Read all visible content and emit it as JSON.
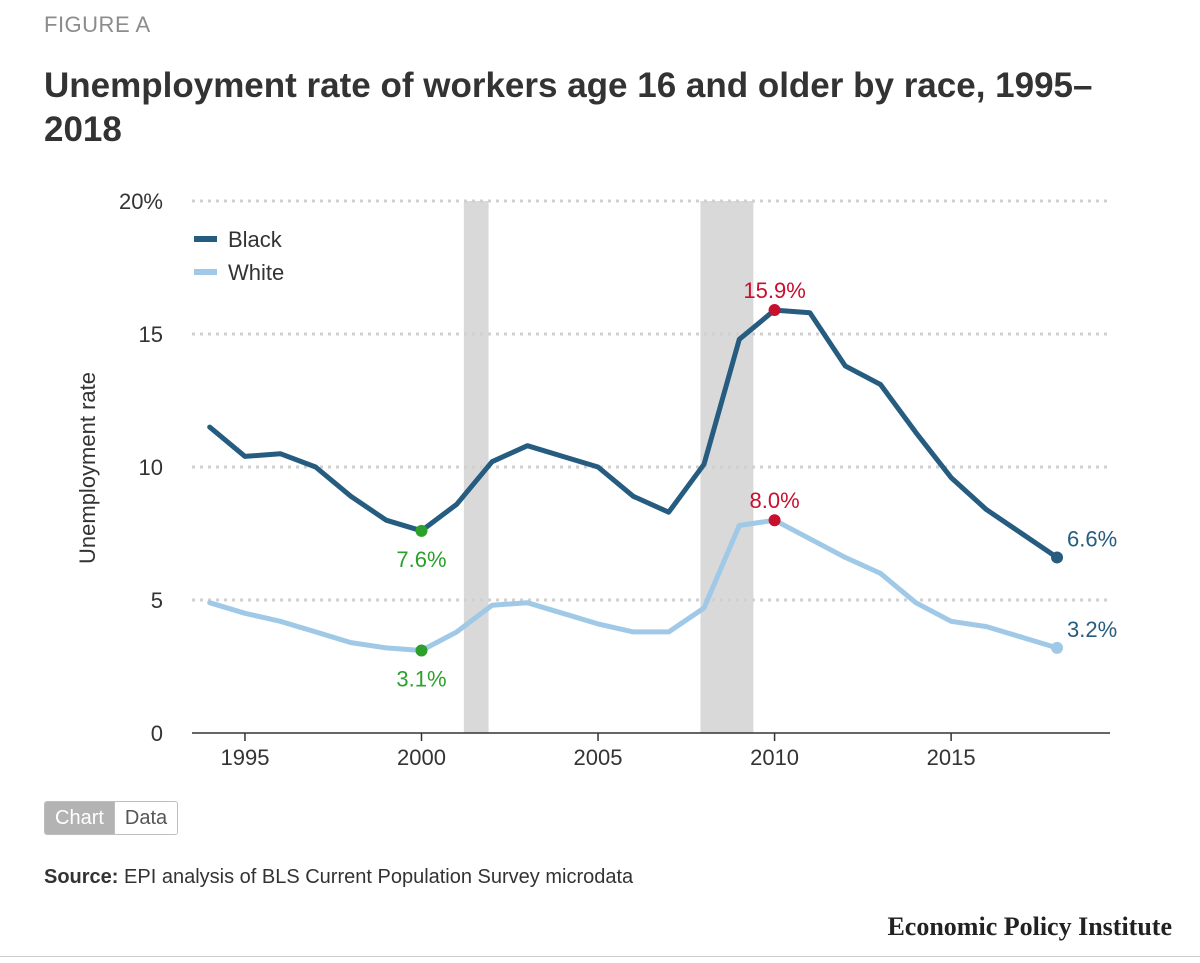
{
  "eyebrow": "FIGURE A",
  "title": "Unemployment rate of workers age 16 and older by race, 1995–2018",
  "toggle": {
    "chart_label": "Chart",
    "data_label": "Data"
  },
  "source": {
    "label": "Source:",
    "text": "EPI analysis of BLS Current Population Survey microdata"
  },
  "brand": "Economic Policy Institute",
  "colors": {
    "black_series": "#255c80",
    "white_series": "#9fc9e6",
    "highlight_red": "#c8102e",
    "highlight_green": "#2ca02c",
    "recession": "#d9d9d9"
  },
  "chart_data": {
    "type": "line",
    "title": "Unemployment rate of workers age 16 and older by race, 1995–2018",
    "xlabel": "",
    "ylabel": "Unemployment rate",
    "xlim": [
      1993.5,
      2019.5
    ],
    "ylim": [
      0,
      20
    ],
    "xticks": [
      1995,
      2000,
      2005,
      2010,
      2015
    ],
    "yticks": [
      {
        "value": 0,
        "label": "0"
      },
      {
        "value": 5,
        "label": "5"
      },
      {
        "value": 10,
        "label": "10"
      },
      {
        "value": 15,
        "label": "15"
      },
      {
        "value": 20,
        "label": "20%"
      }
    ],
    "grid": true,
    "legend": "top-left",
    "x": [
      1994,
      1995,
      1996,
      1997,
      1998,
      1999,
      2000,
      2001,
      2002,
      2003,
      2004,
      2005,
      2006,
      2007,
      2008,
      2009,
      2010,
      2011,
      2012,
      2013,
      2014,
      2015,
      2016,
      2017,
      2018
    ],
    "series": [
      {
        "name": "Black",
        "color": "#255c80",
        "values": [
          11.5,
          10.4,
          10.5,
          10.0,
          8.9,
          8.0,
          7.6,
          8.6,
          10.2,
          10.8,
          10.4,
          10.0,
          8.9,
          8.3,
          10.1,
          14.8,
          15.9,
          15.8,
          13.8,
          13.1,
          11.3,
          9.6,
          8.4,
          7.5,
          6.6
        ]
      },
      {
        "name": "White",
        "color": "#9fc9e6",
        "values": [
          4.9,
          4.5,
          4.2,
          3.8,
          3.4,
          3.2,
          3.1,
          3.8,
          4.8,
          4.9,
          4.5,
          4.1,
          3.8,
          3.8,
          4.7,
          7.8,
          8.0,
          7.3,
          6.6,
          6.0,
          4.9,
          4.2,
          4.0,
          3.6,
          3.2
        ]
      }
    ],
    "recessions": [
      [
        2001.2,
        2001.9
      ],
      [
        2007.9,
        2009.4
      ]
    ],
    "annotations": [
      {
        "series": "Black",
        "x": 2000,
        "y": 7.6,
        "label": "7.6%",
        "color": "#2ca02c",
        "position": "below"
      },
      {
        "series": "White",
        "x": 2000,
        "y": 3.1,
        "label": "3.1%",
        "color": "#2ca02c",
        "position": "below"
      },
      {
        "series": "Black",
        "x": 2010,
        "y": 15.9,
        "label": "15.9%",
        "color": "#c8102e",
        "position": "above"
      },
      {
        "series": "White",
        "x": 2010,
        "y": 8.0,
        "label": "8.0%",
        "color": "#c8102e",
        "position": "above"
      },
      {
        "series": "Black",
        "x": 2018,
        "y": 6.6,
        "label": "6.6%",
        "color": "#255c80",
        "position": "right"
      },
      {
        "series": "White",
        "x": 2018,
        "y": 3.2,
        "label": "3.2%",
        "color": "#255c80",
        "position": "right"
      }
    ]
  }
}
